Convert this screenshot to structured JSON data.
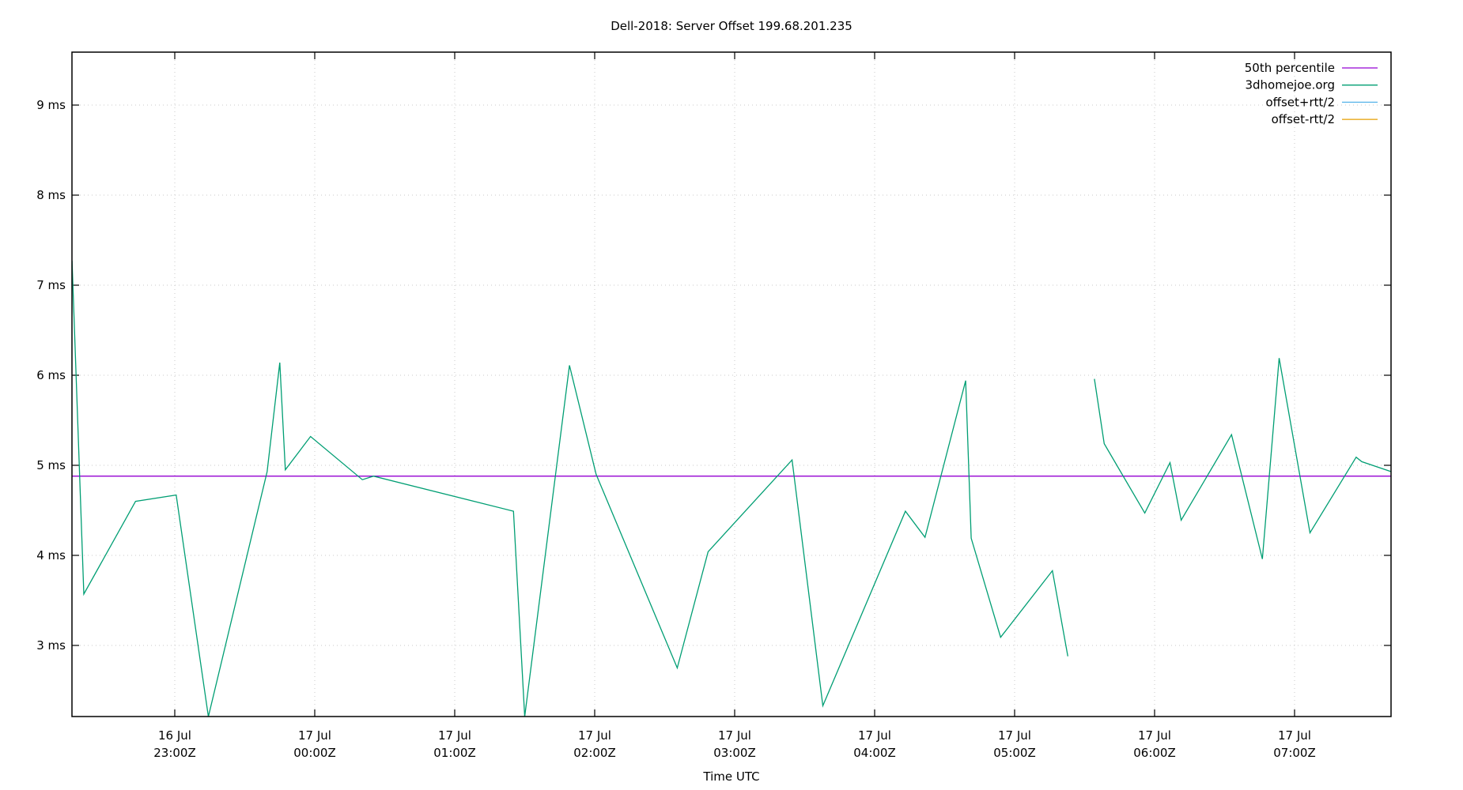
{
  "chart_data": {
    "type": "line",
    "title": "Dell-2018: Server Offset 199.68.201.235",
    "xlabel": "Time UTC",
    "ylabel": "",
    "ylim": [
      2.21,
      9.59
    ],
    "xlim_hours_from_16jul_2300Z": [
      -0.734,
      8.69
    ],
    "grid": true,
    "legend_position": "top-right",
    "y_ticks": [
      {
        "value": 3,
        "label": "3 ms"
      },
      {
        "value": 4,
        "label": "4 ms"
      },
      {
        "value": 5,
        "label": "5 ms"
      },
      {
        "value": 6,
        "label": "6 ms"
      },
      {
        "value": 7,
        "label": "7 ms"
      },
      {
        "value": 8,
        "label": "8 ms"
      },
      {
        "value": 9,
        "label": "9 ms"
      }
    ],
    "x_ticks": [
      {
        "hour": 0,
        "date": "16 Jul",
        "time": "23:00Z"
      },
      {
        "hour": 1,
        "date": "17 Jul",
        "time": "00:00Z"
      },
      {
        "hour": 2,
        "date": "17 Jul",
        "time": "01:00Z"
      },
      {
        "hour": 3,
        "date": "17 Jul",
        "time": "02:00Z"
      },
      {
        "hour": 4,
        "date": "17 Jul",
        "time": "03:00Z"
      },
      {
        "hour": 5,
        "date": "17 Jul",
        "time": "04:00Z"
      },
      {
        "hour": 6,
        "date": "17 Jul",
        "time": "05:00Z"
      },
      {
        "hour": 7,
        "date": "17 Jul",
        "time": "06:00Z"
      },
      {
        "hour": 8,
        "date": "17 Jul",
        "time": "07:00Z"
      }
    ],
    "series": [
      {
        "name": "50th percentile",
        "color": "#9400d3",
        "constant": 4.88
      },
      {
        "name": "3dhomejoe.org",
        "color": "#009e73",
        "points": [
          [
            -0.734,
            7.27
          ],
          [
            -0.65,
            3.57
          ],
          [
            -0.28,
            4.6
          ],
          [
            0.01,
            4.67
          ],
          [
            0.24,
            2.21
          ],
          [
            0.66,
            4.93
          ],
          [
            0.75,
            6.14
          ],
          [
            0.79,
            4.95
          ],
          [
            0.97,
            5.32
          ],
          [
            1.34,
            4.84
          ],
          [
            1.42,
            4.88
          ],
          [
            2.42,
            4.49
          ],
          [
            2.5,
            2.21
          ],
          [
            2.82,
            6.11
          ],
          [
            3.01,
            4.9
          ],
          [
            3.59,
            2.75
          ],
          [
            3.81,
            4.04
          ],
          [
            4.41,
            5.06
          ],
          [
            4.63,
            2.33
          ],
          [
            5.22,
            4.49
          ],
          [
            5.36,
            4.2
          ],
          [
            5.65,
            5.94
          ],
          [
            5.69,
            4.19
          ],
          [
            5.9,
            3.09
          ],
          [
            6.27,
            3.83
          ],
          [
            6.38,
            2.88
          ],
          null,
          [
            6.57,
            5.96
          ],
          [
            6.64,
            5.24
          ],
          [
            6.93,
            4.47
          ],
          [
            7.11,
            5.03
          ],
          [
            7.19,
            4.39
          ],
          [
            7.55,
            5.34
          ],
          [
            7.77,
            3.96
          ],
          [
            7.89,
            6.19
          ],
          [
            8.11,
            4.25
          ],
          [
            8.44,
            5.09
          ],
          [
            8.48,
            5.04
          ],
          [
            8.69,
            4.93
          ]
        ]
      },
      {
        "name": "offset+rtt/2",
        "color": "#56b4e9",
        "points": []
      },
      {
        "name": "offset-rtt/2",
        "color": "#e69f00",
        "points": []
      }
    ]
  }
}
